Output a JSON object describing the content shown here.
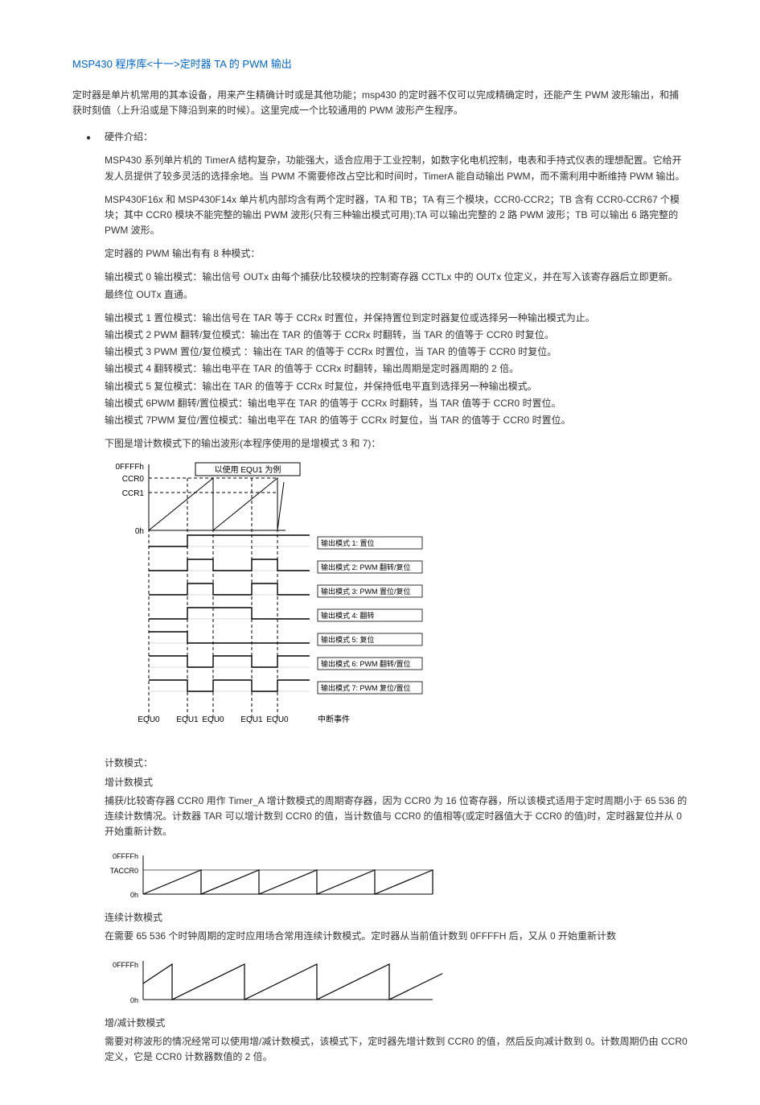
{
  "title": "MSP430 程序库<十一>定时器 TA 的 PWM 输出",
  "intro": "定时器是单片机常用的其本设备，用来产生精确计时或是其他功能；msp430 的定时器不仅可以完成精确定时，还能产生 PWM 波形输出，和捕获时刻值（上升沿或是下降沿到来的时候）。这里完成一个比较通用的 PWM 波形产生程序。",
  "hw_label": "硬件介绍：",
  "p1": "MSP430 系列单片机的 TimerA 结构复杂，功能强大，适合应用于工业控制，如数字化电机控制，电表和手持式仪表的理想配置。它给开发人员提供了较多灵活的选择余地。当 PWM 不需要修改占空比和时间时，TimerA 能自动输出 PWM，而不需利用中断维持 PWM 输出。",
  "p2": "MSP430F16x 和 MSP430F14x 单片机内部均含有两个定时器，TA 和 TB；TA 有三个模块，CCR0-CCR2；TB 含有 CCR0-CCR67 个模块；其中 CCR0 模块不能完整的输出 PWM 波形(只有三种输出模式可用);TA 可以输出完整的 2 路 PWM 波形；TB 可以输出 6 路完整的 PWM 波形。",
  "p3": "定时器的 PWM 输出有有 8 种模式：",
  "p4a": "输出模式 0  输出模式：输出信号 OUTx 由每个捕获/比较模块的控制寄存器 CCTLx 中的 OUTx 位定义，并在写入该寄存器后立即更新。",
  "p4b": "最终位 OUTx 直通。",
  "p5": "输出模式 1 置位模式：输出信号在 TAR 等于 CCRx 时置位，并保持置位到定时器复位或选择另一种输出模式为止。",
  "p6": "输出模式 2 PWM 翻转/复位模式：输出在 TAR 的值等于 CCRx 时翻转，当 TAR 的值等于 CCR0 时复位。",
  "p7": "输出模式 3 PWM 置位/复位模式 ：输出在 TAR 的值等于 CCRx 时置位，当 TAR 的值等于 CCR0 时复位。",
  "p8": "输出模式 4 翻转模式：输出电平在 TAR 的值等于 CCRx 时翻转，输出周期是定时器周期的 2 倍。",
  "p9": "输出模式 5 复位模式：输出在 TAR 的值等于 CCRx 时复位，并保持低电平直到选择另一种输出模式。",
  "p10": "输出模式 6PWM 翻转/置位模式：输出电平在 TAR 的值等于 CCRx 时翻转，当 TAR 值等于 CCR0 时置位。",
  "p11": "输出模式 7PWM 复位/置位模式：输出电平在 TAR 的值等于 CCRx 时复位，当 TAR 的值等于 CCR0 时置位。",
  "p12": "下图是增计数模式下的输出波形(本程序使用的是增模式 3 和 7)：",
  "diag1": {
    "title": "以使用 EQU1 为例",
    "ylabels": [
      "0FFFFh",
      "CCR0",
      "CCR1",
      "0h"
    ],
    "modes": [
      "输出模式 1: 置位",
      "输出模式 2: PWM 翻转/复位",
      "输出模式 3: PWM 置位/复位",
      "输出模式 4: 翻转",
      "输出模式 5: 复位",
      "输出模式 6: PWM 翻转/置位",
      "输出模式 7: PWM 复位/置位"
    ],
    "xlabels": [
      "EQU0",
      "EQU1",
      "EQU0",
      "EQU1",
      "EQU0",
      "中断事件"
    ],
    "stroke": "#000000",
    "dash": "4,3",
    "font_size": 10
  },
  "count_heading": "计数模式：",
  "up_heading": "增计数模式",
  "up_desc": "捕获/比较寄存器 CCR0 用作 Timer_A 增计数模式的周期寄存器，因为 CCR0 为 16 位寄存器，所以该模式适用于定时周期小于 65 536 的连续计数情况。计数器 TAR 可以增计数到 CCR0 的值，当计数值与 CCR0 的值相等(或定时器值大于 CCR0 的值)时，定时器复位并从 0 开始重新计数。",
  "diag2": {
    "yl_top": "0FFFFh",
    "yl_mid": "TACCR0",
    "yl_bot": "0h",
    "stroke": "#000000"
  },
  "cont_heading": "连续计数模式",
  "cont_desc": "在需要 65 536 个时钟周期的定时应用场合常用连续计数模式。定时器从当前值计数到 0FFFFH 后，又从 0 开始重新计数",
  "diag3": {
    "yl_top": "0FFFFh",
    "yl_bot": "0h",
    "stroke": "#000000"
  },
  "updown_heading": "增/减计数模式",
  "updown_desc": "需要对称波形的情况经常可以使用增/减计数模式，该模式下，定时器先增计数到 CCR0 的值，然后反向减计数到 0。计数周期仍由 CCR0 定义，它是 CCR0 计数器数值的 2 倍。"
}
